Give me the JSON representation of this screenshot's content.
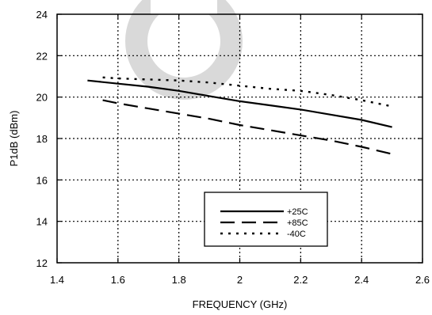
{
  "chart_data": {
    "type": "line",
    "title": "",
    "xlabel": "FREQUENCY (GHz)",
    "ylabel": "P1dB (dBm)",
    "xlim": [
      1.4,
      2.6
    ],
    "ylim": [
      12,
      24
    ],
    "xticks": [
      "1.4",
      "1.6",
      "1.8",
      "2",
      "2.2",
      "2.4",
      "2.6"
    ],
    "yticks": [
      "12",
      "14",
      "16",
      "18",
      "20",
      "22",
      "24"
    ],
    "grid": true,
    "legend_position": "bottom-center",
    "watermark_color": "#d9d9d9",
    "series": [
      {
        "name": "+25C",
        "style": "solid",
        "x": [
          1.5,
          1.6,
          1.7,
          1.8,
          1.9,
          2.0,
          2.1,
          2.2,
          2.3,
          2.4,
          2.5
        ],
        "y": [
          20.8,
          20.65,
          20.5,
          20.3,
          20.05,
          19.8,
          19.6,
          19.4,
          19.15,
          18.9,
          18.55
        ]
      },
      {
        "name": "+85C",
        "style": "dashed",
        "x": [
          1.55,
          1.6,
          1.7,
          1.8,
          1.9,
          2.0,
          2.1,
          2.2,
          2.3,
          2.4,
          2.5
        ],
        "y": [
          19.85,
          19.7,
          19.45,
          19.2,
          18.95,
          18.65,
          18.4,
          18.15,
          17.9,
          17.6,
          17.25
        ]
      },
      {
        "name": "-40C",
        "style": "dotted",
        "x": [
          1.55,
          1.6,
          1.7,
          1.8,
          1.9,
          2.0,
          2.1,
          2.2,
          2.3,
          2.4,
          2.5
        ],
        "y": [
          20.95,
          20.9,
          20.85,
          20.8,
          20.7,
          20.55,
          20.4,
          20.3,
          20.1,
          19.85,
          19.55
        ]
      }
    ]
  }
}
